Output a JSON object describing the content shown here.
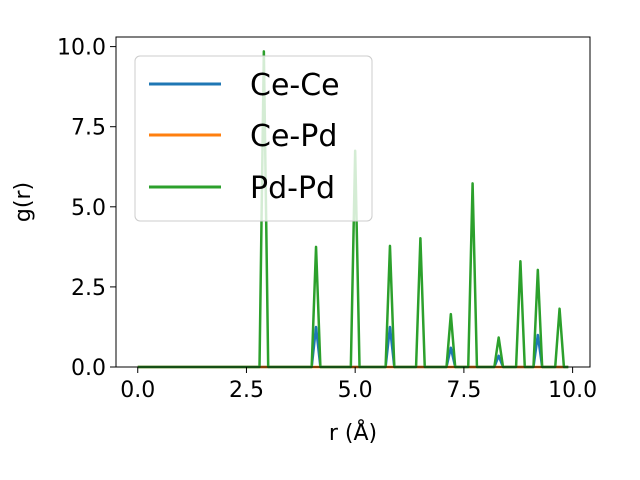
{
  "chart_data": {
    "type": "line",
    "title": "",
    "xlabel": "r (Å)",
    "ylabel": "g(r)",
    "xlim": [
      -0.5,
      10.4
    ],
    "ylim": [
      0,
      10.3
    ],
    "xticks": [
      0.0,
      2.5,
      5.0,
      7.5,
      10.0
    ],
    "yticks": [
      0.0,
      2.5,
      5.0,
      7.5,
      10.0
    ],
    "xtick_labels": [
      "0.0",
      "2.5",
      "5.0",
      "7.5",
      "10.0"
    ],
    "ytick_labels": [
      "0.0",
      "2.5",
      "5.0",
      "7.5",
      "10.0"
    ],
    "grid": false,
    "legend_position": "top-left",
    "series": [
      {
        "name": "Ce-Ce",
        "color": "#1f77b4",
        "x": [
          0.0,
          2.8,
          4.0,
          4.1,
          4.2,
          5.7,
          5.8,
          5.9,
          7.1,
          7.2,
          7.3,
          8.2,
          8.3,
          8.4,
          9.1,
          9.2,
          9.3,
          9.9
        ],
        "y": [
          0,
          0,
          0,
          1.25,
          0,
          0,
          1.25,
          0,
          0,
          0.6,
          0,
          0,
          0.35,
          0,
          0,
          1.0,
          0,
          0
        ]
      },
      {
        "name": "Ce-Pd",
        "color": "#ff7f0e",
        "x": [
          0.0,
          9.9
        ],
        "y": [
          0,
          0
        ]
      },
      {
        "name": "Pd-Pd",
        "color": "#2ca02c",
        "x": [
          0.0,
          2.8,
          2.9,
          3.0,
          4.0,
          4.1,
          4.2,
          4.9,
          5.0,
          5.1,
          5.7,
          5.8,
          5.9,
          6.4,
          6.5,
          6.6,
          7.1,
          7.2,
          7.3,
          7.6,
          7.7,
          7.8,
          8.2,
          8.3,
          8.4,
          8.7,
          8.8,
          8.9,
          9.1,
          9.2,
          9.3,
          9.6,
          9.7,
          9.8,
          9.9
        ],
        "y": [
          0,
          0,
          9.85,
          0,
          0,
          3.75,
          0,
          0,
          6.75,
          0,
          0,
          3.78,
          0,
          0,
          4.02,
          0,
          0,
          1.65,
          0,
          0,
          5.73,
          0,
          0,
          0.92,
          0,
          0,
          3.3,
          0,
          0,
          3.03,
          0,
          0,
          1.82,
          0,
          0
        ]
      }
    ]
  }
}
